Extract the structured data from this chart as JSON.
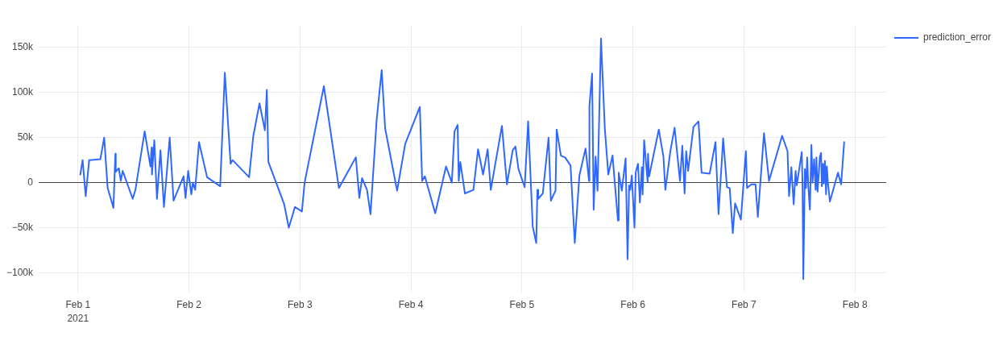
{
  "chart_data": {
    "type": "line",
    "x": [
      "2021-02-01T00:30",
      "2021-02-01T01:00",
      "2021-02-01T01:40",
      "2021-02-01T02:25",
      "2021-02-01T04:50",
      "2021-02-01T05:40",
      "2021-02-01T06:25",
      "2021-02-01T07:40",
      "2021-02-01T08:05",
      "2021-02-01T08:10",
      "2021-02-01T08:50",
      "2021-02-01T09:15",
      "2021-02-01T09:40",
      "2021-02-01T11:50",
      "2021-02-01T12:25",
      "2021-02-01T14:25",
      "2021-02-01T15:40",
      "2021-02-01T15:55",
      "2021-02-01T16:00",
      "2021-02-01T16:30",
      "2021-02-01T17:05",
      "2021-02-01T17:50",
      "2021-02-01T18:35",
      "2021-02-01T19:50",
      "2021-02-01T20:40",
      "2021-02-01T22:50",
      "2021-02-01T23:15",
      "2021-02-01T23:50",
      "2021-02-02T00:30",
      "2021-02-02T00:50",
      "2021-02-02T01:20",
      "2021-02-02T02:10",
      "2021-02-02T03:55",
      "2021-02-02T06:45",
      "2021-02-02T07:45",
      "2021-02-02T09:00",
      "2021-02-02T09:25",
      "2021-02-02T13:00",
      "2021-02-02T13:55",
      "2021-02-02T15:15",
      "2021-02-02T16:25",
      "2021-02-02T16:50",
      "2021-02-02T17:10",
      "2021-02-02T20:35",
      "2021-02-02T21:35",
      "2021-02-02T22:55",
      "2021-02-03T00:25",
      "2021-02-03T01:00",
      "2021-02-03T05:10",
      "2021-02-03T08:25",
      "2021-02-03T12:05",
      "2021-02-03T12:50",
      "2021-02-03T13:25",
      "2021-02-03T14:30",
      "2021-02-03T15:15",
      "2021-02-03T16:35",
      "2021-02-03T17:40",
      "2021-02-03T18:25",
      "2021-02-03T21:00",
      "2021-02-03T22:45",
      "2021-02-04T01:55",
      "2021-02-04T02:25",
      "2021-02-04T03:00",
      "2021-02-04T05:15",
      "2021-02-04T07:35",
      "2021-02-04T08:50",
      "2021-02-04T09:25",
      "2021-02-04T10:05",
      "2021-02-04T10:20",
      "2021-02-04T10:40",
      "2021-02-04T11:40",
      "2021-02-04T13:30",
      "2021-02-04T14:30",
      "2021-02-04T15:35",
      "2021-02-04T16:35",
      "2021-02-04T17:15",
      "2021-02-04T19:40",
      "2021-02-04T20:45",
      "2021-02-04T22:00",
      "2021-02-04T22:35",
      "2021-02-04T23:15",
      "2021-02-05T00:35",
      "2021-02-05T01:20",
      "2021-02-05T02:20",
      "2021-02-05T03:05",
      "2021-02-05T03:20",
      "2021-02-05T03:30",
      "2021-02-05T04:30",
      "2021-02-05T05:45",
      "2021-02-05T06:15",
      "2021-02-05T07:15",
      "2021-02-05T07:30",
      "2021-02-05T08:25",
      "2021-02-05T09:20",
      "2021-02-05T10:30",
      "2021-02-05T11:25",
      "2021-02-05T12:25",
      "2021-02-05T13:45",
      "2021-02-05T14:30",
      "2021-02-05T14:35",
      "2021-02-05T15:10",
      "2021-02-05T15:30",
      "2021-02-05T15:55",
      "2021-02-05T16:20",
      "2021-02-05T17:05",
      "2021-02-05T17:55",
      "2021-02-05T18:40",
      "2021-02-05T19:35",
      "2021-02-05T20:45",
      "2021-02-05T20:55",
      "2021-02-05T21:35",
      "2021-02-05T22:25",
      "2021-02-05T22:50",
      "2021-02-05T23:10",
      "2021-02-05T23:25",
      "2021-02-05T23:45",
      "2021-02-06T00:20",
      "2021-02-06T00:35",
      "2021-02-06T01:05",
      "2021-02-06T01:30",
      "2021-02-06T01:55",
      "2021-02-06T02:05",
      "2021-02-06T02:25",
      "2021-02-06T03:10",
      "2021-02-06T03:15",
      "2021-02-06T03:30",
      "2021-02-06T05:35",
      "2021-02-06T06:35",
      "2021-02-06T07:00",
      "2021-02-06T08:05",
      "2021-02-06T09:00",
      "2021-02-06T10:10",
      "2021-02-06T10:40",
      "2021-02-06T11:10",
      "2021-02-06T11:30",
      "2021-02-06T11:55",
      "2021-02-06T13:05",
      "2021-02-06T14:10",
      "2021-02-06T14:50",
      "2021-02-06T16:35",
      "2021-02-06T17:50",
      "2021-02-06T18:30",
      "2021-02-06T19:30",
      "2021-02-06T20:20",
      "2021-02-06T20:55",
      "2021-02-06T21:35",
      "2021-02-06T22:05",
      "2021-02-06T23:20",
      "2021-02-07T00:25",
      "2021-02-07T00:40",
      "2021-02-07T01:35",
      "2021-02-07T02:30",
      "2021-02-07T03:00",
      "2021-02-07T04:20",
      "2021-02-07T05:25",
      "2021-02-07T08:15",
      "2021-02-07T09:25",
      "2021-02-07T09:45",
      "2021-02-07T10:15",
      "2021-02-07T10:45",
      "2021-02-07T11:10",
      "2021-02-07T11:25",
      "2021-02-07T12:30",
      "2021-02-07T12:40",
      "2021-02-07T12:50",
      "2021-02-07T13:10",
      "2021-02-07T13:25",
      "2021-02-07T13:40",
      "2021-02-07T13:55",
      "2021-02-07T14:15",
      "2021-02-07T14:35",
      "2021-02-07T14:50",
      "2021-02-07T15:10",
      "2021-02-07T15:30",
      "2021-02-07T15:40",
      "2021-02-07T15:55",
      "2021-02-07T16:15",
      "2021-02-07T16:25",
      "2021-02-07T16:40",
      "2021-02-07T16:50",
      "2021-02-07T17:05",
      "2021-02-07T17:15",
      "2021-02-07T17:30",
      "2021-02-07T17:45",
      "2021-02-07T17:55",
      "2021-02-07T18:10",
      "2021-02-07T18:35",
      "2021-02-07T20:20",
      "2021-02-07T21:00",
      "2021-02-07T21:40"
    ],
    "series": [
      {
        "name": "prediction_error",
        "color": "#3068ff",
        "values": [
          9000,
          25000,
          -15000,
          25000,
          26000,
          50000,
          -6000,
          -28000,
          32000,
          12000,
          16000,
          2000,
          13000,
          -18000,
          -8000,
          57000,
          18000,
          39000,
          9000,
          47000,
          -18000,
          36000,
          -27000,
          50000,
          -20000,
          7000,
          -17000,
          13000,
          -13000,
          0,
          -8000,
          45000,
          6000,
          -4000,
          122000,
          21000,
          25000,
          6000,
          52000,
          88000,
          58000,
          103000,
          23000,
          -24000,
          -50000,
          -27000,
          -32000,
          0,
          107000,
          -6000,
          28000,
          -17000,
          5000,
          -8000,
          -35000,
          70000,
          125000,
          60000,
          -9000,
          43000,
          84000,
          2000,
          7000,
          -34000,
          18000,
          0,
          57000,
          64000,
          2000,
          23000,
          -12000,
          -8000,
          37000,
          9000,
          37000,
          -8000,
          63000,
          -2000,
          36000,
          40000,
          15000,
          -5000,
          68000,
          -49000,
          -67000,
          -8000,
          -18000,
          -12000,
          50000,
          -20000,
          -9000,
          59000,
          30000,
          28000,
          19000,
          -67000,
          8000,
          38000,
          2000,
          85000,
          121000,
          -30000,
          29000,
          -9000,
          160000,
          60000,
          9000,
          30000,
          -42000,
          11000,
          -9000,
          27000,
          -85000,
          -3000,
          -8000,
          8000,
          -50000,
          11000,
          21000,
          -22000,
          17000,
          -13000,
          47000,
          1000,
          32000,
          7000,
          59000,
          29000,
          -8000,
          35000,
          61000,
          2000,
          41000,
          -12000,
          35000,
          13000,
          62000,
          68000,
          11000,
          10000,
          45000,
          -35000,
          49000,
          -5000,
          -6000,
          -56000,
          -23000,
          -41000,
          35000,
          -6000,
          -2000,
          -2000,
          -38000,
          55000,
          2000,
          52000,
          35000,
          -15000,
          17000,
          -24000,
          13000,
          -3000,
          34000,
          -4000,
          -107000,
          15000,
          -6000,
          28000,
          -4000,
          -30000,
          42000,
          0,
          26000,
          -8000,
          28000,
          -10000,
          16000,
          29000,
          33000,
          -4000,
          21000,
          -1000,
          24000,
          -13000,
          18000,
          -1000,
          -21000,
          11000,
          -2000,
          45000
        ]
      }
    ],
    "xlim": [
      "2021-01-31T15:30",
      "2021-02-08T06:45"
    ],
    "xticks": [
      {
        "value": "2021-02-01",
        "label": "Feb 1\n2021"
      },
      {
        "value": "2021-02-02",
        "label": "Feb 2"
      },
      {
        "value": "2021-02-03",
        "label": "Feb 3"
      },
      {
        "value": "2021-02-04",
        "label": "Feb 4"
      },
      {
        "value": "2021-02-05",
        "label": "Feb 5"
      },
      {
        "value": "2021-02-06",
        "label": "Feb 6"
      },
      {
        "value": "2021-02-07",
        "label": "Feb 7"
      },
      {
        "value": "2021-02-08",
        "label": "Feb 8"
      }
    ],
    "ylim": [
      -122000,
      175000
    ],
    "yticks": [
      {
        "value": -100000,
        "label": "−100k"
      },
      {
        "value": -50000,
        "label": "−50k"
      },
      0,
      {
        "value": 50000,
        "label": "50k"
      },
      {
        "value": 100000,
        "label": "100k"
      },
      {
        "value": 150000,
        "label": "150k"
      }
    ],
    "grid": true,
    "legend": "top right"
  }
}
